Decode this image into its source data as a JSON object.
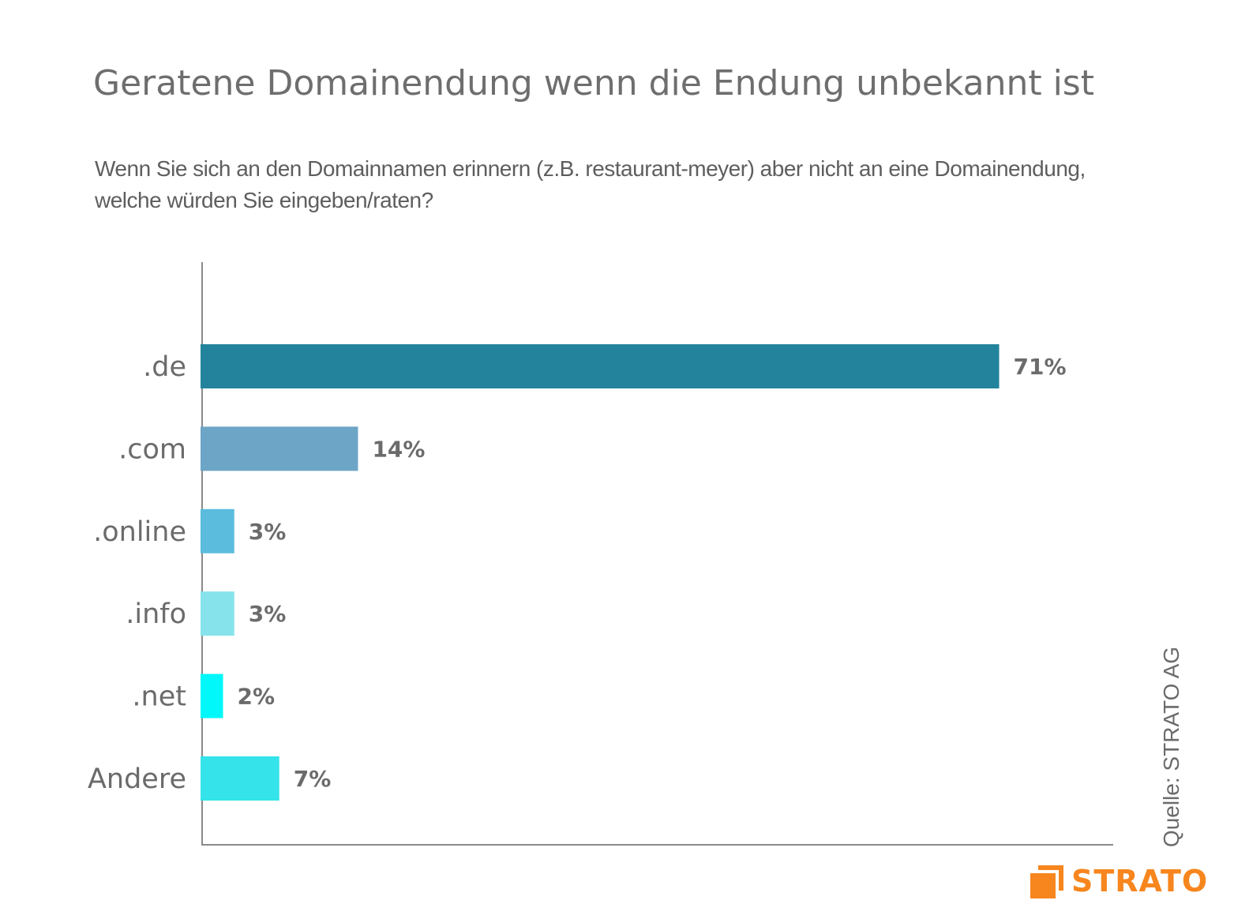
{
  "title": "Geratene Domainendung wenn die Endung unbekannt ist",
  "subtitle": "Wenn Sie sich an den Domainnamen erinnern (z.B. restaurant-meyer) aber nicht an eine Domainendung, welche würden Sie eingeben/raten?",
  "source": "Quelle: STRATO  AG",
  "logo": {
    "text": "STRATO",
    "color": "#f7861e",
    "icon": "strato-logo-icon"
  },
  "chart_data": {
    "type": "bar",
    "orientation": "horizontal",
    "categories": [
      ".de",
      ".com",
      ".online",
      ".info",
      ".net",
      "Andere"
    ],
    "values": [
      71,
      14,
      3,
      3,
      2,
      7
    ],
    "value_labels": [
      "71%",
      "14%",
      "3%",
      "3%",
      "2%",
      "7%"
    ],
    "colors": [
      "#24839c",
      "#6da5c6",
      "#5bbcde",
      "#86e3eb",
      "#00f8fa",
      "#35e3eb"
    ],
    "unit": "%",
    "xlim": [
      0,
      81
    ],
    "grid": false,
    "legend": "none"
  }
}
